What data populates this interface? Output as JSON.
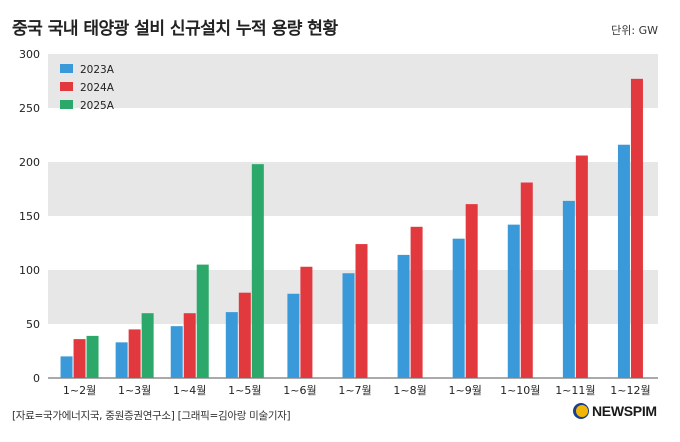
{
  "title": "중국 국내 태양광 설비 신규설치 누적 용량 현황",
  "unit": "단위: GW",
  "source": "[자료=국가에너지국, 중원증권연구소] [그래픽=김아랑 미술기자]",
  "logo": "NEWSPIM",
  "chart_data": {
    "type": "bar",
    "categories": [
      "1~2월",
      "1~3월",
      "1~4월",
      "1~5월",
      "1~6월",
      "1~7월",
      "1~8월",
      "1~9월",
      "1~10월",
      "1~11월",
      "1~12월"
    ],
    "series": [
      {
        "name": "2023A",
        "color": "#3a9ad9",
        "values": [
          20,
          33,
          48,
          61,
          78,
          97,
          114,
          129,
          142,
          164,
          216
        ]
      },
      {
        "name": "2024A",
        "color": "#e2393f",
        "values": [
          36,
          45,
          60,
          79,
          103,
          124,
          140,
          161,
          181,
          206,
          277
        ]
      },
      {
        "name": "2025A",
        "color": "#2ba86a",
        "values": [
          39,
          60,
          105,
          198,
          null,
          null,
          null,
          null,
          null,
          null,
          null
        ]
      }
    ],
    "ylim": [
      0,
      300
    ],
    "yticks": [
      "0",
      "50",
      "100",
      "150",
      "200",
      "250",
      "300"
    ],
    "legend": "top-left",
    "grid": "alternating bands"
  }
}
